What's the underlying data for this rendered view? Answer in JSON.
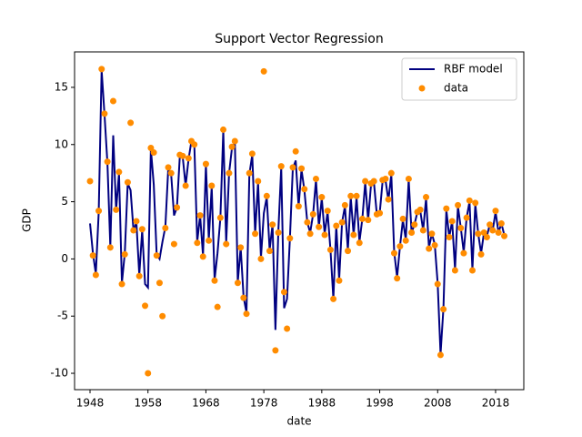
{
  "chart_data": {
    "type": "combo",
    "title": "Support Vector Regression",
    "x_label": "date",
    "y_label": "GDP",
    "x": [
      1948,
      1948.5,
      1949,
      1949.5,
      1950,
      1950.5,
      1951,
      1951.5,
      1952,
      1952.5,
      1953,
      1953.5,
      1954,
      1954.5,
      1955,
      1955.5,
      1956,
      1956.5,
      1957,
      1957.5,
      1958,
      1958.5,
      1959,
      1959.5,
      1960,
      1960.5,
      1961,
      1961.5,
      1962,
      1962.5,
      1963,
      1963.5,
      1964,
      1964.5,
      1965,
      1965.5,
      1966,
      1966.5,
      1967,
      1967.5,
      1968,
      1968.5,
      1969,
      1969.5,
      1970,
      1970.5,
      1971,
      1971.5,
      1972,
      1972.5,
      1973,
      1973.5,
      1974,
      1974.5,
      1975,
      1975.5,
      1976,
      1976.5,
      1977,
      1977.5,
      1978,
      1978.5,
      1979,
      1979.5,
      1980,
      1980.5,
      1981,
      1981.5,
      1982,
      1982.5,
      1983,
      1983.5,
      1984,
      1984.5,
      1985,
      1985.5,
      1986,
      1986.5,
      1987,
      1987.5,
      1988,
      1988.5,
      1989,
      1989.5,
      1990,
      1990.5,
      1991,
      1991.5,
      1992,
      1992.5,
      1993,
      1993.5,
      1994,
      1994.5,
      1995,
      1995.5,
      1996,
      1996.5,
      1997,
      1997.5,
      1998,
      1998.5,
      1999,
      1999.5,
      2000,
      2000.5,
      2001,
      2001.5,
      2002,
      2002.5,
      2003,
      2003.5,
      2004,
      2004.5,
      2005,
      2005.5,
      2006,
      2006.5,
      2007,
      2007.5,
      2008,
      2008.5,
      2009,
      2009.5,
      2010,
      2010.5,
      2011,
      2011.5,
      2012,
      2012.5,
      2013,
      2013.5,
      2014,
      2014.5,
      2015,
      2015.5,
      2016,
      2016.5,
      2017,
      2017.5,
      2018,
      2018.5,
      2019,
      2019.5
    ],
    "series": [
      {
        "name": "RBF model",
        "type": "line",
        "color": "#000080",
        "values": [
          3.1,
          0.5,
          -1.3,
          4.1,
          16.5,
          12.6,
          8.4,
          1.1,
          10.8,
          4.3,
          7.5,
          -2.1,
          0.5,
          6.6,
          6.0,
          2.5,
          3.2,
          -1.4,
          2.5,
          -2.2,
          -2.5,
          9.6,
          6.5,
          0.4,
          0.0,
          1.5,
          2.8,
          7.9,
          7.4,
          3.8,
          4.5,
          9.0,
          8.9,
          6.4,
          8.7,
          10.3,
          10.0,
          1.5,
          3.8,
          0.3,
          8.2,
          1.7,
          6.3,
          -1.8,
          0.5,
          3.6,
          11.2,
          1.4,
          7.5,
          9.7,
          10.2,
          -2.0,
          1.0,
          -3.3,
          -4.7,
          7.4,
          9.1,
          2.2,
          6.7,
          0.1,
          4.0,
          5.4,
          0.8,
          3.0,
          -6.2,
          2.4,
          8.0,
          -4.3,
          -3.5,
          1.8,
          7.9,
          8.6,
          4.6,
          7.8,
          6.0,
          3.2,
          2.3,
          3.9,
          6.9,
          2.8,
          5.3,
          2.2,
          4.1,
          0.8,
          -3.5,
          2.9,
          -1.8,
          3.2,
          4.6,
          0.8,
          5.4,
          2.1,
          5.4,
          1.5,
          3.5,
          6.7,
          3.4,
          6.5,
          6.7,
          3.9,
          4.0,
          6.8,
          6.9,
          5.1,
          7.4,
          0.6,
          -1.6,
          1.1,
          3.4,
          1.7,
          6.9,
          2.3,
          3.0,
          4.1,
          4.2,
          2.5,
          5.3,
          1.0,
          2.2,
          1.3,
          -2.1,
          -8.3,
          -4.3,
          4.3,
          1.9,
          3.3,
          -0.9,
          4.6,
          2.7,
          0.6,
          3.6,
          5.0,
          -0.9,
          4.8,
          2.2,
          0.5,
          2.3,
          2.0,
          3.0,
          2.5,
          4.1,
          2.3,
          3.1,
          2.1
        ]
      },
      {
        "name": "data",
        "type": "scatter",
        "color": "#ff8c00",
        "values": [
          6.8,
          0.3,
          -1.4,
          4.2,
          16.6,
          12.7,
          8.5,
          1.0,
          13.8,
          4.3,
          7.6,
          -2.2,
          0.4,
          6.7,
          11.9,
          2.5,
          3.3,
          -1.5,
          2.6,
          -4.1,
          -10.0,
          9.7,
          9.3,
          0.3,
          -2.1,
          -5.0,
          2.7,
          8.0,
          7.5,
          1.3,
          4.5,
          9.1,
          9.0,
          6.4,
          8.8,
          10.3,
          10.0,
          1.4,
          3.8,
          0.2,
          8.3,
          1.6,
          6.4,
          -1.9,
          -4.2,
          3.6,
          11.3,
          1.3,
          7.5,
          9.8,
          10.3,
          -2.1,
          1.0,
          -3.4,
          -4.8,
          7.5,
          9.2,
          2.2,
          6.8,
          0.0,
          16.4,
          5.5,
          0.7,
          3.0,
          -8.0,
          2.3,
          8.1,
          -2.9,
          -6.1,
          1.8,
          8.0,
          9.4,
          4.6,
          7.9,
          6.1,
          3.2,
          2.2,
          3.9,
          7.0,
          2.8,
          5.4,
          2.1,
          4.2,
          0.8,
          -3.5,
          2.9,
          -1.9,
          3.2,
          4.7,
          0.7,
          5.5,
          2.1,
          5.5,
          1.4,
          3.5,
          6.8,
          3.4,
          6.6,
          6.8,
          3.9,
          4.0,
          6.9,
          7.0,
          5.2,
          7.5,
          0.5,
          -1.7,
          1.1,
          3.5,
          1.6,
          7.0,
          2.3,
          3.0,
          4.1,
          4.3,
          2.5,
          5.4,
          0.9,
          2.2,
          1.2,
          -2.2,
          -8.4,
          -4.4,
          4.4,
          1.9,
          3.3,
          -1.0,
          4.7,
          2.7,
          0.5,
          3.6,
          5.1,
          -1.0,
          4.9,
          2.2,
          0.4,
          2.3,
          1.9,
          3.0,
          2.5,
          4.2,
          2.3,
          3.1,
          2.0
        ]
      }
    ],
    "xlim": [
      1945.33,
      2022.87
    ],
    "ylim": [
      -11.43,
      18.1
    ],
    "xticks": [
      1948,
      1958,
      1968,
      1978,
      1988,
      1998,
      2008,
      2018
    ],
    "yticks": [
      -10,
      -5,
      0,
      5,
      10,
      15
    ],
    "legend": "upper right"
  }
}
